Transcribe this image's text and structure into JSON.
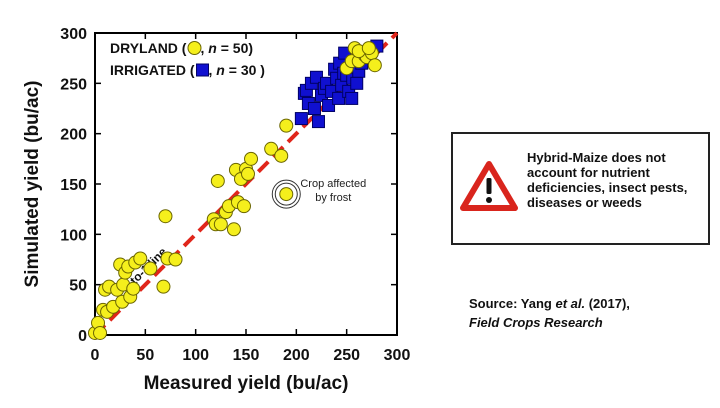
{
  "colors": {
    "dryland": "#f5ef1c",
    "dryland_stroke": "#6b6600",
    "irrigated": "#1010d0",
    "irrigated_stroke": "#000066",
    "one_to_one": "#e0261b",
    "warning_red": "#d9251d"
  },
  "callout": {
    "icon": "warning-triangle-icon",
    "text": "Hybrid-Maize does not account for nutrient deficiencies, insect pests, diseases or weeds"
  },
  "source": {
    "line1_prefix": "Source: Yang ",
    "line1_italic": "et al.",
    "line1_suffix": " (2017),",
    "line2": "Field Crops Research"
  },
  "chart_data": {
    "type": "scatter",
    "xlabel": "Measured yield (bu/ac)",
    "ylabel": "Simulated yield (bu/ac)",
    "xlim": [
      0,
      300
    ],
    "ylim": [
      0,
      300
    ],
    "xticks": [
      "0",
      "50",
      "100",
      "150",
      "200",
      "250",
      "300"
    ],
    "yticks": [
      "0",
      "50",
      "100",
      "150",
      "200",
      "250",
      "300"
    ],
    "legend": {
      "placement": "top-left",
      "entries": [
        {
          "label_prefix": "DRYLAND (",
          "label_n": ", n = 50)"
        },
        {
          "label_prefix": "IRRIGATED (",
          "label_n": ", n = 30 )"
        }
      ]
    },
    "one_to_one_label": "1-to-1 line",
    "annotation": {
      "text_line1": "Crop affected",
      "text_line2": "by frost",
      "x": 190,
      "y": 140
    },
    "series": [
      {
        "name": "DRYLAND",
        "marker": "circle",
        "points": [
          [
            0,
            2
          ],
          [
            3,
            12
          ],
          [
            5,
            2
          ],
          [
            8,
            25
          ],
          [
            10,
            45
          ],
          [
            12,
            23
          ],
          [
            14,
            48
          ],
          [
            18,
            28
          ],
          [
            22,
            45
          ],
          [
            25,
            70
          ],
          [
            27,
            33
          ],
          [
            28,
            50
          ],
          [
            30,
            62
          ],
          [
            33,
            68
          ],
          [
            35,
            38
          ],
          [
            38,
            46
          ],
          [
            40,
            72
          ],
          [
            45,
            76
          ],
          [
            55,
            66
          ],
          [
            68,
            48
          ],
          [
            70,
            118
          ],
          [
            72,
            76
          ],
          [
            80,
            75
          ],
          [
            118,
            115
          ],
          [
            120,
            110
          ],
          [
            122,
            153
          ],
          [
            125,
            110
          ],
          [
            130,
            122
          ],
          [
            133,
            128
          ],
          [
            138,
            105
          ],
          [
            140,
            164
          ],
          [
            142,
            132
          ],
          [
            145,
            155
          ],
          [
            148,
            128
          ],
          [
            150,
            165
          ],
          [
            152,
            160
          ],
          [
            155,
            175
          ],
          [
            175,
            185
          ],
          [
            185,
            178
          ],
          [
            190,
            208
          ],
          [
            250,
            265
          ],
          [
            255,
            272
          ],
          [
            258,
            285
          ],
          [
            262,
            272
          ],
          [
            268,
            278
          ],
          [
            270,
            276
          ],
          [
            275,
            280
          ],
          [
            278,
            268
          ],
          [
            262,
            282
          ],
          [
            272,
            285
          ]
        ]
      },
      {
        "name": "IRRIGATED",
        "marker": "square",
        "points": [
          [
            205,
            215
          ],
          [
            208,
            240
          ],
          [
            210,
            243
          ],
          [
            212,
            230
          ],
          [
            215,
            250
          ],
          [
            218,
            225
          ],
          [
            220,
            256
          ],
          [
            222,
            212
          ],
          [
            225,
            238
          ],
          [
            228,
            245
          ],
          [
            230,
            250
          ],
          [
            232,
            228
          ],
          [
            235,
            242
          ],
          [
            238,
            264
          ],
          [
            240,
            255
          ],
          [
            242,
            235
          ],
          [
            243,
            270
          ],
          [
            245,
            248
          ],
          [
            247,
            260
          ],
          [
            248,
            280
          ],
          [
            250,
            258
          ],
          [
            252,
            242
          ],
          [
            255,
            235
          ],
          [
            256,
            255
          ],
          [
            258,
            266
          ],
          [
            260,
            250
          ],
          [
            262,
            262
          ],
          [
            265,
            270
          ],
          [
            270,
            278
          ],
          [
            280,
            287
          ]
        ]
      }
    ]
  }
}
